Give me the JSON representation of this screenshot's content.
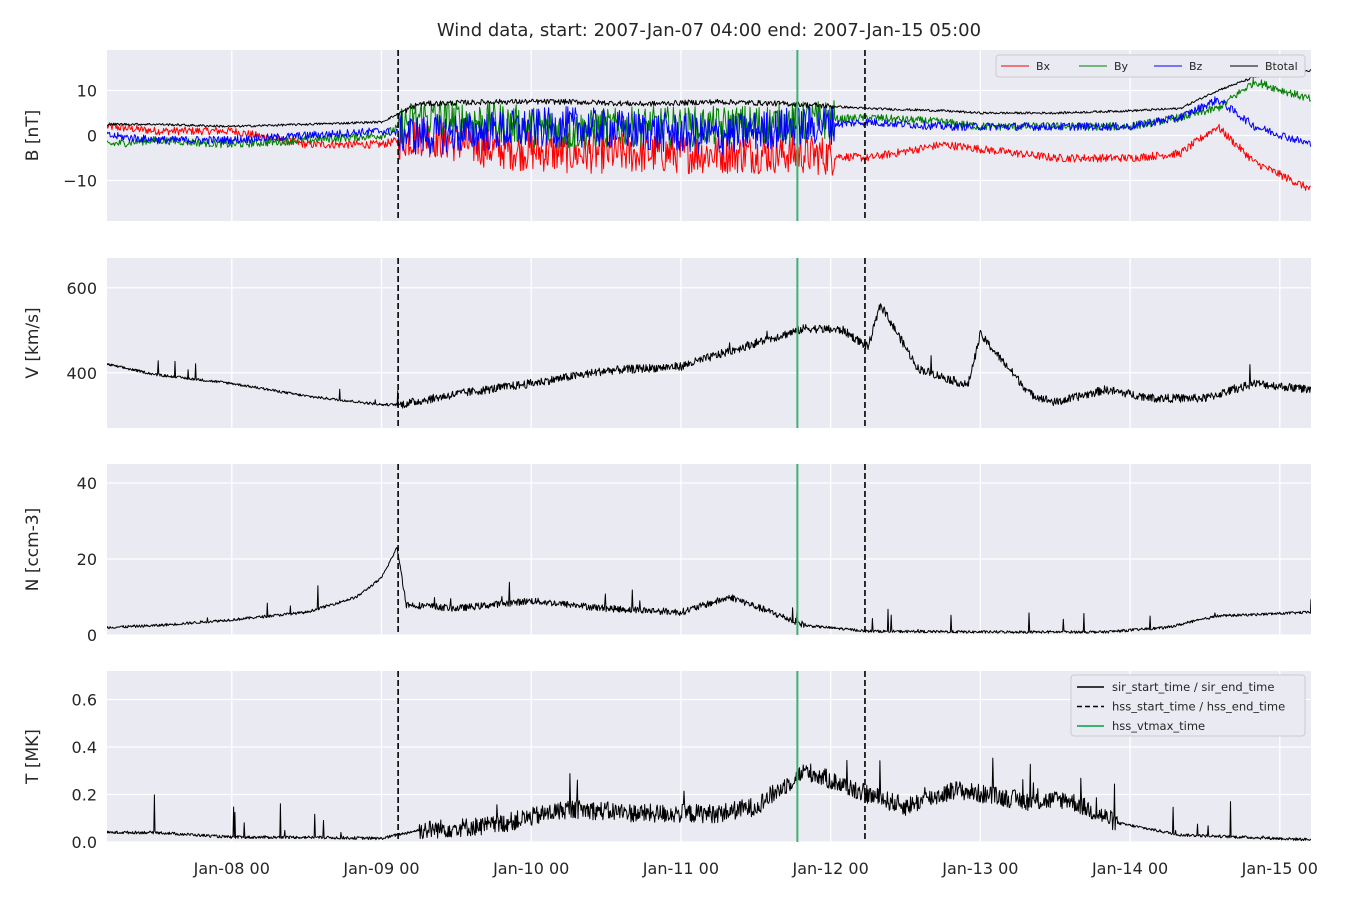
{
  "chart_data": {
    "type": "line",
    "title": "Wind data, start: 2007-Jan-07 04:00  end: 2007-Jan-15 05:00",
    "x_range": [
      "2007-01-07 04:00",
      "2007-01-15 05:00"
    ],
    "x_ticks": [
      "2007-01-08 00:00",
      "2007-01-09 00:00",
      "2007-01-10 00:00",
      "2007-01-11 00:00",
      "2007-01-12 00:00",
      "2007-01-13 00:00",
      "2007-01-14 00:00",
      "2007-01-15 00:00"
    ],
    "x_tick_labels": [
      "Jan-08 00",
      "Jan-09 00",
      "Jan-10 00",
      "Jan-11 00",
      "Jan-12 00",
      "Jan-13 00",
      "Jan-14 00",
      "Jan-15 00"
    ],
    "grid": true,
    "event_lines": {
      "hss_start_time": "2007-01-09 02:40",
      "hss_end_time": "2007-01-12 05:30",
      "hss_vtmax_time": "2007-01-11 18:40"
    },
    "event_legend": [
      "sir_start_time / sir_end_time",
      "hss_start_time / hss_end_time",
      "hss_vtmax_time"
    ],
    "event_colors": {
      "hss": "#000000",
      "vtmax": "#3cb371"
    },
    "panels": [
      {
        "ylabel": "B [nT]",
        "ylim": [
          -19,
          19
        ],
        "yticks": [
          -10,
          0,
          10
        ],
        "ytick_labels": [
          "−10",
          "0",
          "10"
        ],
        "legend": "top-right",
        "series": [
          {
            "name": "Bx",
            "color": "#ff0000",
            "x": [
              "2007-01-07 04:00",
              "2007-01-07 12:00",
              "2007-01-08 00:00",
              "2007-01-08 12:00",
              "2007-01-09 00:00",
              "2007-01-09 06:00",
              "2007-01-09 18:00",
              "2007-01-10 06:00",
              "2007-01-10 18:00",
              "2007-01-11 06:00",
              "2007-01-11 18:00",
              "2007-01-12 06:00",
              "2007-01-12 18:00",
              "2007-01-13 00:00",
              "2007-01-13 12:00",
              "2007-01-14 00:00",
              "2007-01-14 08:00",
              "2007-01-14 14:00",
              "2007-01-14 20:00",
              "2007-01-15 05:00"
            ],
            "y": [
              2,
              1,
              1,
              -2,
              -2,
              0,
              -3,
              -4,
              -4,
              -4,
              -4,
              -5,
              -2,
              -3,
              -5,
              -5,
              -4,
              2,
              -6,
              -12
            ]
          },
          {
            "name": "By",
            "color": "#008000",
            "x": [
              "2007-01-07 04:00",
              "2007-01-07 12:00",
              "2007-01-08 00:00",
              "2007-01-08 12:00",
              "2007-01-09 00:00",
              "2007-01-09 06:00",
              "2007-01-09 18:00",
              "2007-01-10 06:00",
              "2007-01-10 18:00",
              "2007-01-11 06:00",
              "2007-01-11 18:00",
              "2007-01-12 06:00",
              "2007-01-12 18:00",
              "2007-01-13 00:00",
              "2007-01-13 12:00",
              "2007-01-14 00:00",
              "2007-01-14 08:00",
              "2007-01-14 14:00",
              "2007-01-14 20:00",
              "2007-01-15 05:00"
            ],
            "y": [
              -2,
              -1,
              -2,
              -1,
              0,
              4,
              3,
              1,
              2,
              2,
              3,
              4,
              3,
              2,
              2,
              2,
              4,
              6,
              12,
              8
            ]
          },
          {
            "name": "Bz",
            "color": "#0000ff",
            "x": [
              "2007-01-07 04:00",
              "2007-01-07 12:00",
              "2007-01-08 00:00",
              "2007-01-08 12:00",
              "2007-01-09 00:00",
              "2007-01-09 06:00",
              "2007-01-09 18:00",
              "2007-01-10 06:00",
              "2007-01-10 18:00",
              "2007-01-11 06:00",
              "2007-01-11 18:00",
              "2007-01-12 06:00",
              "2007-01-12 18:00",
              "2007-01-13 00:00",
              "2007-01-13 12:00",
              "2007-01-14 00:00",
              "2007-01-14 08:00",
              "2007-01-14 14:00",
              "2007-01-14 20:00",
              "2007-01-15 05:00"
            ],
            "y": [
              0,
              -1,
              -1,
              0,
              1,
              0,
              1,
              2,
              1,
              0,
              2,
              3,
              2,
              2,
              2,
              2,
              4,
              8,
              2,
              -2
            ]
          },
          {
            "name": "Btotal",
            "color": "#000000",
            "x": [
              "2007-01-07 04:00",
              "2007-01-07 12:00",
              "2007-01-08 00:00",
              "2007-01-08 12:00",
              "2007-01-09 00:00",
              "2007-01-09 06:00",
              "2007-01-09 18:00",
              "2007-01-10 06:00",
              "2007-01-10 18:00",
              "2007-01-11 06:00",
              "2007-01-11 18:00",
              "2007-01-12 06:00",
              "2007-01-12 18:00",
              "2007-01-13 00:00",
              "2007-01-13 12:00",
              "2007-01-14 00:00",
              "2007-01-14 08:00",
              "2007-01-14 14:00",
              "2007-01-14 20:00",
              "2007-01-15 05:00"
            ],
            "y": [
              2.5,
              2.5,
              2,
              2.5,
              3,
              7,
              7.5,
              7.5,
              7,
              7.5,
              7,
              6,
              5.5,
              5,
              5,
              5.5,
              6,
              10,
              13,
              14.5
            ]
          }
        ]
      },
      {
        "ylabel": "V [km/s]",
        "ylim": [
          270,
          670
        ],
        "yticks": [
          400,
          600
        ],
        "ytick_labels": [
          "400",
          "600"
        ],
        "series": [
          {
            "color": "#000000",
            "x": [
              "2007-01-07 04:00",
              "2007-01-07 12:00",
              "2007-01-08 00:00",
              "2007-01-08 12:00",
              "2007-01-09 00:00",
              "2007-01-09 03:00",
              "2007-01-09 12:00",
              "2007-01-10 00:00",
              "2007-01-10 12:00",
              "2007-01-11 00:00",
              "2007-01-11 12:00",
              "2007-01-11 20:00",
              "2007-01-12 02:00",
              "2007-01-12 06:00",
              "2007-01-12 08:00",
              "2007-01-12 14:00",
              "2007-01-12 22:00",
              "2007-01-13 00:00",
              "2007-01-13 08:00",
              "2007-01-13 12:00",
              "2007-01-13 20:00",
              "2007-01-14 04:00",
              "2007-01-14 12:00",
              "2007-01-14 20:00",
              "2007-01-15 05:00"
            ],
            "y": [
              420,
              395,
              375,
              345,
              325,
              325,
              350,
              375,
              405,
              415,
              470,
              505,
              500,
              460,
              560,
              410,
              370,
              490,
              350,
              330,
              360,
              340,
              340,
              375,
              360
            ]
          }
        ]
      },
      {
        "ylabel": "N [ccm-3]",
        "ylim": [
          0,
          45
        ],
        "yticks": [
          0,
          20,
          40
        ],
        "ytick_labels": [
          "0",
          "20",
          "40"
        ],
        "series": [
          {
            "color": "#000000",
            "x": [
              "2007-01-07 04:00",
              "2007-01-07 12:00",
              "2007-01-08 00:00",
              "2007-01-08 12:00",
              "2007-01-08 20:00",
              "2007-01-09 00:00",
              "2007-01-09 02:30",
              "2007-01-09 04:00",
              "2007-01-09 12:00",
              "2007-01-10 00:00",
              "2007-01-10 12:00",
              "2007-01-11 00:00",
              "2007-01-11 08:00",
              "2007-01-11 20:00",
              "2007-01-12 06:00",
              "2007-01-13 00:00",
              "2007-01-13 20:00",
              "2007-01-14 06:00",
              "2007-01-14 14:00",
              "2007-01-15 05:00"
            ],
            "y": [
              2,
              2.5,
              4,
              6,
              10,
              15,
              23,
              8,
              7,
              9,
              7,
              6,
              10,
              2.5,
              1,
              0.8,
              0.8,
              2,
              5,
              6
            ]
          }
        ]
      },
      {
        "ylabel": "T [MK]",
        "ylim": [
          0,
          0.72
        ],
        "yticks": [
          0.0,
          0.2,
          0.4,
          0.6
        ],
        "ytick_labels": [
          "0.0",
          "0.2",
          "0.4",
          "0.6"
        ],
        "legend": "top-right",
        "series": [
          {
            "color": "#000000",
            "x": [
              "2007-01-07 04:00",
              "2007-01-07 12:00",
              "2007-01-08 00:00",
              "2007-01-08 12:00",
              "2007-01-09 00:00",
              "2007-01-09 06:00",
              "2007-01-09 18:00",
              "2007-01-10 06:00",
              "2007-01-10 18:00",
              "2007-01-11 06:00",
              "2007-01-11 12:00",
              "2007-01-11 20:00",
              "2007-01-12 06:00",
              "2007-01-12 12:00",
              "2007-01-12 20:00",
              "2007-01-13 08:00",
              "2007-01-13 14:00",
              "2007-01-13 22:00",
              "2007-01-14 08:00",
              "2007-01-15 05:00"
            ],
            "y": [
              0.04,
              0.04,
              0.02,
              0.02,
              0.015,
              0.05,
              0.07,
              0.14,
              0.12,
              0.12,
              0.15,
              0.3,
              0.2,
              0.15,
              0.22,
              0.17,
              0.18,
              0.08,
              0.03,
              0.01
            ]
          }
        ]
      }
    ]
  }
}
